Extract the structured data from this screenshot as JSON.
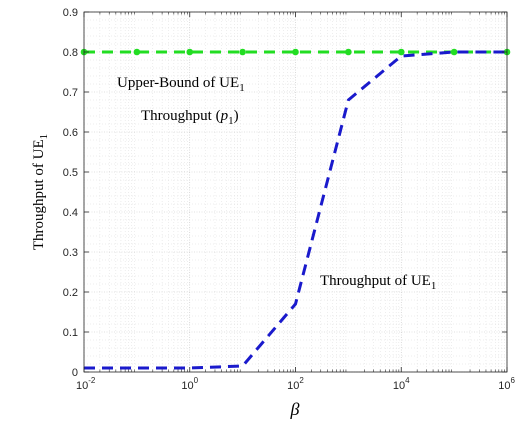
{
  "chart_data": {
    "type": "line",
    "x_scale": "log",
    "xlim": [
      0.01,
      1000000
    ],
    "ylim": [
      0,
      0.9
    ],
    "grid": true,
    "minor_grid": true,
    "xlabel": "β",
    "ylabel": {
      "text": "Throughput of UE",
      "sub": "1"
    },
    "x_ticks": [
      {
        "value": 0.01,
        "base": "10",
        "exp": "-2"
      },
      {
        "value": 1,
        "base": "10",
        "exp": "0"
      },
      {
        "value": 100,
        "base": "10",
        "exp": "2"
      },
      {
        "value": 10000,
        "base": "10",
        "exp": "4"
      },
      {
        "value": 1000000,
        "base": "10",
        "exp": "6"
      }
    ],
    "y_ticks": [
      {
        "value": 0,
        "label": "0"
      },
      {
        "value": 0.1,
        "label": "0.1"
      },
      {
        "value": 0.2,
        "label": "0.2"
      },
      {
        "value": 0.3,
        "label": "0.3"
      },
      {
        "value": 0.4,
        "label": "0.4"
      },
      {
        "value": 0.5,
        "label": "0.5"
      },
      {
        "value": 0.6,
        "label": "0.6"
      },
      {
        "value": 0.7,
        "label": "0.7"
      },
      {
        "value": 0.8,
        "label": "0.8"
      },
      {
        "value": 0.9,
        "label": "0.9"
      }
    ],
    "series": [
      {
        "color": "#22dd22",
        "style": "dashed",
        "marker": "circle",
        "x": [
          0.01,
          0.1,
          1,
          10,
          100,
          1000,
          10000,
          100000,
          1000000
        ],
        "y": [
          0.8,
          0.8,
          0.8,
          0.8,
          0.8,
          0.8,
          0.8,
          0.8,
          0.8
        ]
      },
      {
        "color": "#1a1acc",
        "style": "dashed",
        "marker": "none",
        "x": [
          0.01,
          0.1,
          1,
          10,
          100,
          1000,
          10000,
          100000,
          1000000
        ],
        "y": [
          0.01,
          0.01,
          0.01,
          0.015,
          0.17,
          0.68,
          0.79,
          0.8,
          0.8
        ]
      }
    ],
    "annotations": [
      {
        "text": "Upper-Bound of UE",
        "sub": "1"
      },
      {
        "text": "Throughput (",
        "math": "p",
        "math_sub": "1",
        "tail": ")"
      },
      {
        "text": "Throughput of UE",
        "sub": "1"
      }
    ]
  }
}
